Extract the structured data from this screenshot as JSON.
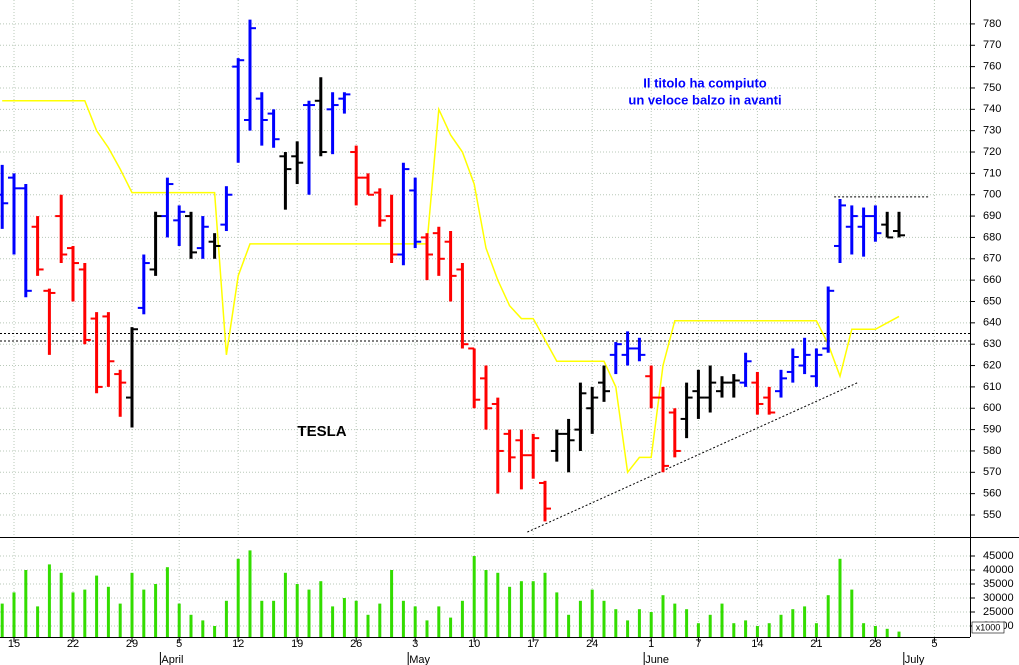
{
  "chart_data": {
    "type": "ohlc",
    "title": "TESLA",
    "annotations": [
      "Il titolo ha compiuto",
      "un veloce balzo in avanti"
    ],
    "categories": [
      null,
      "15",
      null,
      null,
      null,
      null,
      "22",
      null,
      null,
      null,
      null,
      "29",
      null,
      null,
      null,
      "5",
      null,
      null,
      null,
      null,
      "12",
      null,
      null,
      null,
      null,
      "19",
      null,
      null,
      null,
      null,
      "26",
      null,
      null,
      null,
      null,
      "3",
      null,
      null,
      null,
      null,
      "10",
      null,
      null,
      null,
      null,
      "17",
      null,
      null,
      null,
      null,
      "24",
      null,
      null,
      null,
      null,
      "1",
      null,
      null,
      null,
      "7",
      null,
      null,
      null,
      null,
      "14",
      null,
      null,
      null,
      null,
      "21",
      null,
      null,
      null,
      null,
      "28",
      null,
      null,
      null,
      null,
      "5",
      null,
      null
    ],
    "months": [
      null,
      null,
      null,
      null,
      null,
      null,
      null,
      null,
      null,
      null,
      null,
      null,
      null,
      null,
      "April",
      null,
      null,
      null,
      null,
      null,
      null,
      null,
      null,
      null,
      null,
      null,
      null,
      null,
      null,
      null,
      null,
      null,
      null,
      null,
      null,
      "May",
      null,
      null,
      null,
      null,
      null,
      null,
      null,
      null,
      null,
      null,
      null,
      null,
      null,
      null,
      null,
      null,
      null,
      null,
      null,
      "June",
      null,
      null,
      null,
      null,
      null,
      null,
      null,
      null,
      null,
      null,
      null,
      null,
      null,
      null,
      null,
      null,
      null,
      null,
      null,
      null,
      null,
      "July",
      null,
      null,
      null,
      null
    ],
    "series": {
      "open": [
        700,
        708,
        703,
        685,
        655,
        690,
        675,
        665,
        642,
        643,
        616,
        605,
        647,
        665,
        690,
        688,
        690,
        675,
        678,
        686,
        760,
        735,
        745,
        738,
        718,
        718,
        742,
        744,
        740,
        745,
        720,
        708,
        701,
        690,
        672,
        702,
        680,
        682,
        678,
        665,
        628,
        614,
        602,
        588,
        585,
        578,
        565,
        580,
        588,
        590,
        600,
        612,
        625,
        625,
        628,
        615,
        605,
        598,
        595,
        608,
        605,
        608,
        612,
        612,
        612,
        605,
        608,
        617,
        620,
        615,
        628,
        676,
        685,
        685,
        690,
        686,
        683,
        null,
        null,
        null,
        null,
        null
      ],
      "high": [
        714,
        710,
        705,
        690,
        656,
        700,
        676,
        668,
        645,
        645,
        618,
        638,
        672,
        692,
        708,
        695,
        692,
        690,
        682,
        704,
        764,
        782,
        748,
        740,
        720,
        725,
        744,
        755,
        748,
        748,
        723,
        710,
        703,
        700,
        715,
        708,
        682,
        685,
        683,
        668,
        628,
        620,
        605,
        590,
        590,
        588,
        566,
        590,
        595,
        612,
        610,
        620,
        631,
        636,
        633,
        620,
        610,
        600,
        612,
        618,
        620,
        615,
        616,
        626,
        617,
        610,
        618,
        628,
        633,
        628,
        657,
        698,
        695,
        694,
        695,
        692,
        692,
        null,
        null,
        null,
        null,
        null
      ],
      "low": [
        684,
        672,
        652,
        662,
        625,
        668,
        650,
        630,
        607,
        610,
        596,
        591,
        644,
        662,
        680,
        676,
        670,
        670,
        670,
        683,
        715,
        730,
        723,
        722,
        693,
        705,
        700,
        718,
        719,
        738,
        695,
        700,
        685,
        668,
        667,
        675,
        660,
        662,
        650,
        628,
        600,
        590,
        560,
        570,
        562,
        567,
        547,
        575,
        570,
        580,
        588,
        603,
        616,
        620,
        622,
        600,
        570,
        577,
        586,
        595,
        598,
        605,
        605,
        610,
        597,
        597,
        605,
        612,
        616,
        610,
        626,
        668,
        672,
        671,
        678,
        680,
        680,
        null,
        null,
        null,
        null,
        null
      ],
      "close": [
        696,
        703,
        655,
        665,
        654,
        672,
        668,
        632,
        610,
        622,
        612,
        637,
        668,
        690,
        705,
        692,
        673,
        685,
        676,
        700,
        763,
        778,
        735,
        726,
        712,
        715,
        742,
        720,
        742,
        747,
        708,
        700,
        688,
        672,
        712,
        678,
        672,
        670,
        662,
        630,
        604,
        600,
        580,
        577,
        578,
        586,
        553,
        588,
        585,
        607,
        605,
        608,
        630,
        628,
        625,
        605,
        573,
        580,
        605,
        605,
        612,
        612,
        613,
        622,
        602,
        598,
        614,
        624,
        625,
        625,
        655,
        695,
        690,
        690,
        682,
        680,
        681,
        null,
        null,
        null,
        null,
        null
      ]
    },
    "bar_colors": [
      "#0000ff",
      "#0000ff",
      "#0000ff",
      "#ff0000",
      "#ff0000",
      "#ff0000",
      "#ff0000",
      "#ff0000",
      "#ff0000",
      "#ff0000",
      "#ff0000",
      "#000000",
      "#0000ff",
      "#000000",
      "#0000ff",
      "#0000ff",
      "#000000",
      "#0000ff",
      "#000000",
      "#0000ff",
      "#0000ff",
      "#0000ff",
      "#0000ff",
      "#0000ff",
      "#000000",
      "#000000",
      "#0000ff",
      "#000000",
      "#0000ff",
      "#0000ff",
      "#ff0000",
      "#ff0000",
      "#ff0000",
      "#ff0000",
      "#0000ff",
      "#0000ff",
      "#ff0000",
      "#ff0000",
      "#ff0000",
      "#ff0000",
      "#ff0000",
      "#ff0000",
      "#ff0000",
      "#ff0000",
      "#ff0000",
      "#ff0000",
      "#ff0000",
      "#000000",
      "#000000",
      "#000000",
      "#000000",
      "#000000",
      "#0000ff",
      "#0000ff",
      "#0000ff",
      "#ff0000",
      "#ff0000",
      "#ff0000",
      "#000000",
      "#000000",
      "#000000",
      "#000000",
      "#000000",
      "#0000ff",
      "#ff0000",
      "#ff0000",
      "#0000ff",
      "#0000ff",
      "#0000ff",
      "#0000ff",
      "#0000ff",
      "#0000ff",
      "#0000ff",
      "#0000ff",
      "#0000ff",
      "#000000",
      "#000000",
      null,
      null,
      null,
      null,
      null
    ],
    "indicator": {
      "color": "#ffff00",
      "values": [
        744,
        744,
        744,
        744,
        744,
        744,
        744,
        744,
        730,
        722,
        712,
        701,
        701,
        701,
        701,
        701,
        701,
        701,
        701,
        625,
        662,
        677,
        677,
        677,
        677,
        677,
        677,
        677,
        677,
        677,
        677,
        677,
        677,
        677,
        677,
        677,
        677,
        740,
        728,
        720,
        705,
        675,
        660,
        648,
        642,
        642,
        632,
        622,
        622,
        622,
        622,
        622,
        610,
        570,
        577,
        577,
        620,
        641,
        641,
        641,
        641,
        641,
        641,
        641,
        641,
        641,
        641,
        641,
        641,
        641,
        630,
        615,
        637,
        637,
        637,
        640,
        643,
        null,
        null,
        null,
        null,
        null
      ]
    },
    "ylim": [
      539.7,
      791.2
    ],
    "yticks": [
      550,
      560,
      570,
      580,
      590,
      600,
      610,
      620,
      630,
      640,
      650,
      660,
      670,
      680,
      690,
      700,
      710,
      720,
      730,
      740,
      750,
      760,
      770,
      780
    ],
    "grid": true,
    "levels": [
      635,
      631.5
    ],
    "resistance": {
      "value": 699,
      "x_index": [
        70.5,
        78.5
      ]
    },
    "trendline": {
      "x_index": [
        44.5,
        72.5
      ],
      "values": [
        542,
        612
      ]
    },
    "volume": {
      "color": "#33dd00",
      "unit": "x1000",
      "values": [
        28000,
        32000,
        40000,
        27000,
        42000,
        39000,
        32000,
        33000,
        38000,
        34000,
        28000,
        39000,
        33000,
        35000,
        41000,
        28000,
        24000,
        22000,
        20000,
        29000,
        44000,
        47000,
        29000,
        29000,
        39000,
        35000,
        33000,
        36000,
        27000,
        30000,
        29000,
        24000,
        28000,
        40000,
        29000,
        27000,
        22000,
        27000,
        23000,
        29000,
        45000,
        40000,
        39000,
        34000,
        36000,
        36000,
        39000,
        32000,
        24000,
        29000,
        33000,
        29000,
        26000,
        22000,
        26000,
        25000,
        31000,
        28000,
        26000,
        21000,
        24000,
        28000,
        21000,
        22000,
        20000,
        21000,
        24000,
        26000,
        27000,
        21000,
        31000,
        44000,
        33000,
        21000,
        20000,
        19000,
        18000,
        null,
        null,
        null,
        null,
        null
      ],
      "ylim": [
        16071,
        51786
      ],
      "yticks": [
        20000,
        25000,
        30000,
        35000,
        40000,
        45000
      ]
    }
  }
}
